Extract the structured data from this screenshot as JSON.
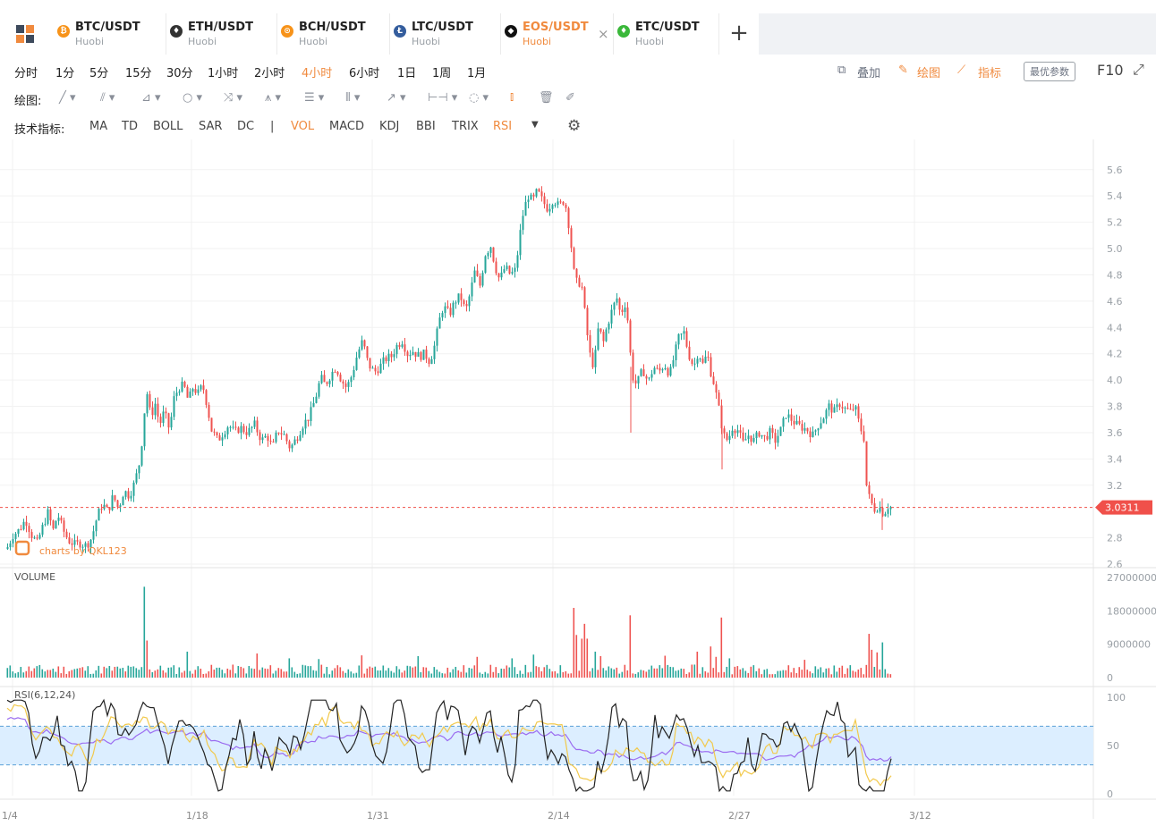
{
  "tabs": [
    {
      "pair": "BTC/USDT",
      "exchange": "Huobi",
      "icon": "bitcoin-icon",
      "color": "#f7931a",
      "glyph": "₿"
    },
    {
      "pair": "ETH/USDT",
      "exchange": "Huobi",
      "icon": "ethereum-icon",
      "color": "#333333",
      "glyph": "♦"
    },
    {
      "pair": "BCH/USDT",
      "exchange": "Huobi",
      "icon": "bitcoin-cash-icon",
      "color": "#f7931a",
      "glyph": "⊙"
    },
    {
      "pair": "LTC/USDT",
      "exchange": "Huobi",
      "icon": "litecoin-icon",
      "color": "#345d9d",
      "glyph": "Ł"
    },
    {
      "pair": "EOS/USDT",
      "exchange": "Huobi",
      "icon": "eos-icon",
      "color": "#111111",
      "glyph": "◆",
      "active": true
    },
    {
      "pair": "ETC/USDT",
      "exchange": "Huobi",
      "icon": "ethereum-classic-icon",
      "color": "#3ab83a",
      "glyph": "♦"
    }
  ],
  "add_tab": "+",
  "intervals": [
    "分时",
    "1分",
    "5分",
    "15分",
    "30分",
    "1小时",
    "2小时",
    "4小时",
    "6小时",
    "1日",
    "1周",
    "1月"
  ],
  "active_interval": "4小时",
  "toolbar_right": {
    "overlay": "叠加",
    "draw": "绘图",
    "indicator": "指标",
    "params": "最优参数",
    "f10": "F10"
  },
  "drawing_label": "绘图:",
  "indicator_label": "技术指标:",
  "indicators": [
    "MA",
    "TD",
    "BOLL",
    "SAR",
    "DC",
    "|",
    "VOL",
    "MACD",
    "KDJ",
    "BBI",
    "TRIX",
    "RSI"
  ],
  "active_indicators": [
    "VOL",
    "RSI"
  ],
  "watermark": "charts by QKL123",
  "colors": {
    "up": "#26a69a",
    "down": "#ef5350",
    "accent": "#f08a3e",
    "price_tag": "#f0504a",
    "rsi_band": "#dceeff"
  },
  "chart_data": {
    "type": "candlestick",
    "price_axis": {
      "ticks": [
        "5.6",
        "5.4",
        "5.2",
        "5.0",
        "4.8",
        "4.6",
        "4.4",
        "4.2",
        "4.0",
        "3.8",
        "3.6",
        "3.4",
        "3.2",
        "2.8",
        "2.6"
      ],
      "ylim": [
        2.58,
        5.68
      ]
    },
    "x_axis": {
      "ticks": [
        "1/4",
        "1/18",
        "1/31",
        "2/14",
        "2/27",
        "3/12"
      ]
    },
    "last_price": "3.0311",
    "price_path": [
      [
        0,
        2.7
      ],
      [
        8,
        2.73
      ],
      [
        14,
        2.82
      ],
      [
        21,
        2.86
      ],
      [
        28,
        2.94
      ],
      [
        35,
        2.82
      ],
      [
        41,
        2.76
      ],
      [
        47,
        2.88
      ],
      [
        53,
        2.99
      ],
      [
        59,
        2.86
      ],
      [
        64,
        2.98
      ],
      [
        70,
        2.86
      ],
      [
        76,
        2.78
      ],
      [
        83,
        2.75
      ],
      [
        89,
        2.76
      ],
      [
        96,
        2.74
      ],
      [
        102,
        2.8
      ],
      [
        108,
        2.96
      ],
      [
        114,
        3.06
      ],
      [
        120,
        3.0
      ],
      [
        126,
        3.12
      ],
      [
        132,
        3.02
      ],
      [
        138,
        3.16
      ],
      [
        144,
        3.12
      ],
      [
        150,
        3.22
      ],
      [
        155,
        3.36
      ],
      [
        159,
        3.58
      ],
      [
        163,
        3.94
      ],
      [
        168,
        3.72
      ],
      [
        173,
        3.82
      ],
      [
        178,
        3.66
      ],
      [
        183,
        3.76
      ],
      [
        189,
        3.62
      ],
      [
        194,
        3.86
      ],
      [
        199,
        3.94
      ],
      [
        205,
        3.96
      ],
      [
        210,
        3.84
      ],
      [
        215,
        3.94
      ],
      [
        221,
        3.9
      ],
      [
        226,
        3.96
      ],
      [
        230,
        3.84
      ],
      [
        236,
        3.62
      ],
      [
        243,
        3.54
      ],
      [
        249,
        3.6
      ],
      [
        255,
        3.66
      ],
      [
        262,
        3.6
      ],
      [
        268,
        3.64
      ],
      [
        276,
        3.6
      ],
      [
        284,
        3.66
      ],
      [
        292,
        3.54
      ],
      [
        298,
        3.58
      ],
      [
        304,
        3.48
      ],
      [
        310,
        3.62
      ],
      [
        317,
        3.58
      ],
      [
        324,
        3.48
      ],
      [
        331,
        3.56
      ],
      [
        338,
        3.66
      ],
      [
        345,
        3.72
      ],
      [
        352,
        3.86
      ],
      [
        358,
        4.02
      ],
      [
        363,
        3.96
      ],
      [
        369,
        4.04
      ],
      [
        375,
        4.1
      ],
      [
        381,
        4.0
      ],
      [
        387,
        3.94
      ],
      [
        393,
        4.04
      ],
      [
        399,
        4.2
      ],
      [
        405,
        4.3
      ],
      [
        411,
        4.12
      ],
      [
        418,
        4.06
      ],
      [
        424,
        4.1
      ],
      [
        430,
        4.16
      ],
      [
        437,
        4.18
      ],
      [
        443,
        4.26
      ],
      [
        449,
        4.3
      ],
      [
        455,
        4.2
      ],
      [
        461,
        4.22
      ],
      [
        468,
        4.18
      ],
      [
        474,
        4.2
      ],
      [
        480,
        4.14
      ],
      [
        486,
        4.28
      ],
      [
        490,
        4.44
      ],
      [
        495,
        4.56
      ],
      [
        502,
        4.5
      ],
      [
        508,
        4.6
      ],
      [
        514,
        4.64
      ],
      [
        520,
        4.52
      ],
      [
        525,
        4.66
      ],
      [
        530,
        4.82
      ],
      [
        536,
        4.72
      ],
      [
        542,
        4.96
      ],
      [
        548,
        5.02
      ],
      [
        553,
        4.86
      ],
      [
        558,
        4.76
      ],
      [
        564,
        4.86
      ],
      [
        570,
        4.8
      ],
      [
        576,
        4.84
      ],
      [
        580,
        5.08
      ],
      [
        585,
        5.3
      ],
      [
        590,
        5.4
      ],
      [
        595,
        5.36
      ],
      [
        600,
        5.44
      ],
      [
        606,
        5.36
      ],
      [
        612,
        5.3
      ],
      [
        618,
        5.38
      ],
      [
        624,
        5.32
      ],
      [
        629,
        5.36
      ],
      [
        633,
        5.3
      ],
      [
        637,
        5.08
      ],
      [
        641,
        4.82
      ],
      [
        645,
        4.72
      ],
      [
        649,
        4.76
      ],
      [
        653,
        4.52
      ],
      [
        657,
        4.28
      ],
      [
        661,
        4.1
      ],
      [
        665,
        4.2
      ],
      [
        669,
        4.44
      ],
      [
        673,
        4.26
      ],
      [
        677,
        4.38
      ],
      [
        681,
        4.48
      ],
      [
        685,
        4.56
      ],
      [
        689,
        4.62
      ],
      [
        693,
        4.5
      ],
      [
        698,
        4.58
      ],
      [
        701,
        4.46
      ],
      [
        704,
        4.2
      ],
      [
        708,
        3.96
      ],
      [
        713,
        4.0
      ],
      [
        718,
        4.08
      ],
      [
        724,
        3.98
      ],
      [
        730,
        4.1
      ],
      [
        736,
        4.06
      ],
      [
        742,
        4.12
      ],
      [
        748,
        4.04
      ],
      [
        753,
        4.18
      ],
      [
        758,
        4.32
      ],
      [
        764,
        4.36
      ],
      [
        769,
        4.2
      ],
      [
        775,
        4.1
      ],
      [
        780,
        4.22
      ],
      [
        785,
        4.12
      ],
      [
        790,
        4.2
      ],
      [
        794,
        4.06
      ],
      [
        798,
        3.96
      ],
      [
        803,
        3.78
      ],
      [
        808,
        3.58
      ],
      [
        813,
        3.54
      ],
      [
        818,
        3.64
      ],
      [
        824,
        3.62
      ],
      [
        830,
        3.52
      ],
      [
        836,
        3.58
      ],
      [
        842,
        3.54
      ],
      [
        848,
        3.6
      ],
      [
        854,
        3.56
      ],
      [
        860,
        3.6
      ],
      [
        866,
        3.54
      ],
      [
        872,
        3.62
      ],
      [
        878,
        3.74
      ],
      [
        884,
        3.7
      ],
      [
        890,
        3.66
      ],
      [
        896,
        3.64
      ],
      [
        902,
        3.62
      ],
      [
        908,
        3.58
      ],
      [
        914,
        3.66
      ],
      [
        920,
        3.72
      ],
      [
        926,
        3.8
      ],
      [
        932,
        3.76
      ],
      [
        938,
        3.82
      ],
      [
        944,
        3.78
      ],
      [
        950,
        3.76
      ],
      [
        955,
        3.8
      ],
      [
        960,
        3.66
      ],
      [
        965,
        3.56
      ],
      [
        968,
        3.2
      ],
      [
        972,
        3.08
      ],
      [
        977,
        3.02
      ],
      [
        982,
        3.04
      ],
      [
        987,
        2.98
      ],
      [
        992,
        3.04
      ],
      [
        996,
        3.03
      ]
    ],
    "volume": {
      "label": "VOLUME",
      "ticks": [
        "27000000",
        "18000000",
        "9000000",
        "0"
      ],
      "ylim": [
        0,
        27000000
      ],
      "spikes": [
        [
          162,
          24500000
        ],
        [
          163,
          10000000
        ],
        [
          208,
          7000000
        ],
        [
          288,
          6500000
        ],
        [
          324,
          5200000
        ],
        [
          355,
          5000000
        ],
        [
          404,
          6000000
        ],
        [
          468,
          5800000
        ],
        [
          533,
          5600000
        ],
        [
          572,
          5200000
        ],
        [
          595,
          6200000
        ],
        [
          641,
          18800000
        ],
        [
          645,
          11500000
        ],
        [
          649,
          10500000
        ],
        [
          653,
          14500000
        ],
        [
          657,
          10500000
        ],
        [
          665,
          7000000
        ],
        [
          670,
          5800000
        ],
        [
          705,
          16800000
        ],
        [
          744,
          5900000
        ],
        [
          778,
          7000000
        ],
        [
          793,
          8400000
        ],
        [
          800,
          5600000
        ],
        [
          807,
          16200000
        ],
        [
          815,
          5200000
        ],
        [
          900,
          4800000
        ],
        [
          970,
          11800000
        ],
        [
          974,
          7500000
        ],
        [
          979,
          6800000
        ],
        [
          986,
          9500000
        ]
      ],
      "baseline": 2200000
    },
    "rsi": {
      "label": "RSI(6,12,24)",
      "ticks": [
        "100",
        "50",
        "0"
      ],
      "ylim": [
        0,
        100
      ],
      "overbought": 70,
      "oversold": 30,
      "series": [
        {
          "name": "RSI6",
          "color": "#222222"
        },
        {
          "name": "RSI12",
          "color": "#f2c94c"
        },
        {
          "name": "RSI24",
          "color": "#9b6cf0"
        }
      ]
    }
  }
}
